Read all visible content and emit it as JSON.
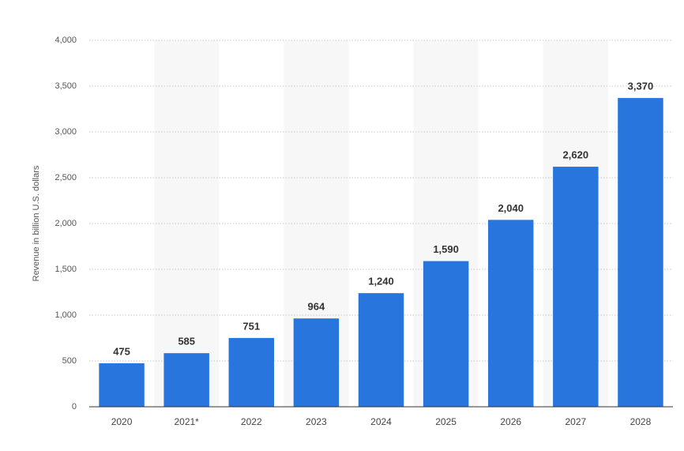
{
  "chart_data": {
    "type": "bar",
    "y_label": "Revenue in billion U.S. dollars",
    "categories": [
      "2020",
      "2021*",
      "2022",
      "2023",
      "2024",
      "2025",
      "2026",
      "2027",
      "2028"
    ],
    "values": [
      475,
      585,
      751,
      964,
      1240,
      1590,
      2040,
      2620,
      3370
    ],
    "value_labels": [
      "475",
      "585",
      "751",
      "964",
      "1,240",
      "1,590",
      "2,040",
      "2,620",
      "3,370"
    ],
    "color": "#2876dd",
    "ylim": [
      0,
      4000
    ],
    "yticks": [
      0,
      500,
      {
        "value": 1000,
        "label": "1,000"
      },
      {
        "value": 1500,
        "label": "1,500"
      },
      {
        "value": 2000,
        "label": "2,000"
      },
      {
        "value": 2500,
        "label": "2,500"
      },
      {
        "value": 3000,
        "label": "3,000"
      },
      {
        "value": 3500,
        "label": "3,500"
      },
      {
        "value": 4000,
        "label": "4,000"
      }
    ],
    "grid": true
  }
}
